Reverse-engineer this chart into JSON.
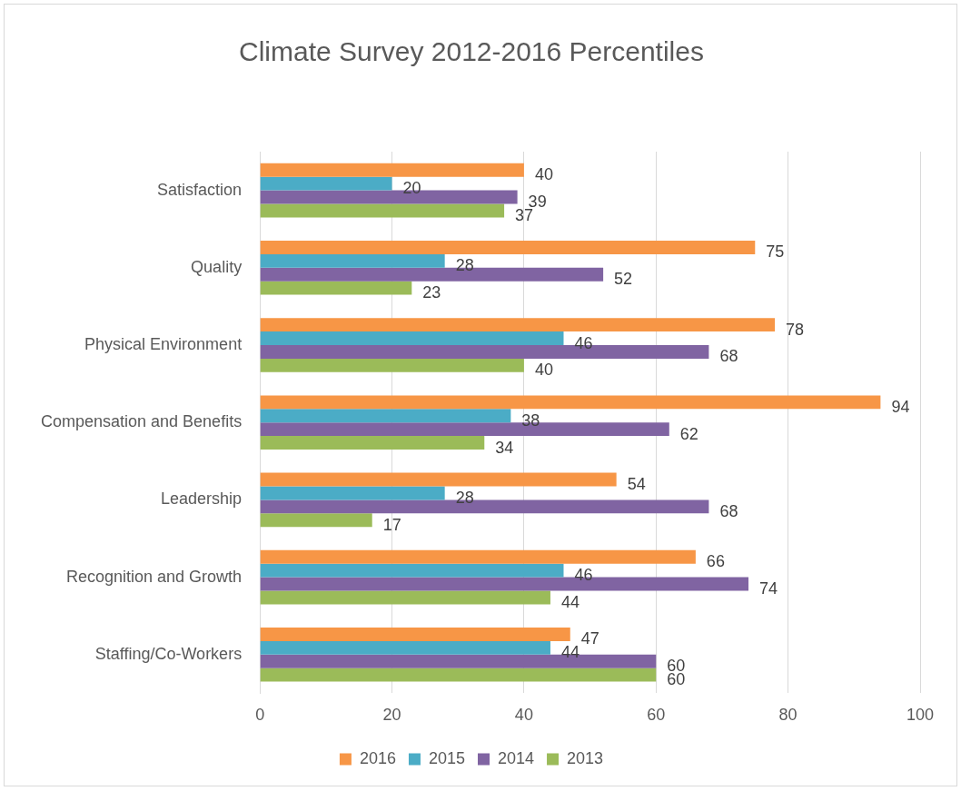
{
  "chart_data": {
    "type": "bar",
    "orientation": "horizontal",
    "title": "Climate Survey 2012-2016 Percentiles",
    "categories": [
      "Satisfaction",
      "Quality",
      "Physical Environment",
      "Compensation and Benefits",
      "Leadership",
      "Recognition and Growth",
      "Staffing/Co-Workers"
    ],
    "series": [
      {
        "name": "2016",
        "color": "#f79646",
        "values": [
          40,
          75,
          78,
          94,
          54,
          66,
          47
        ]
      },
      {
        "name": "2015",
        "color": "#4bacc6",
        "values": [
          20,
          28,
          46,
          38,
          28,
          46,
          44
        ]
      },
      {
        "name": "2014",
        "color": "#8064a2",
        "values": [
          39,
          52,
          68,
          62,
          68,
          74,
          60
        ]
      },
      {
        "name": "2013",
        "color": "#9bbb59",
        "values": [
          37,
          23,
          40,
          34,
          17,
          44,
          60
        ]
      }
    ],
    "xlim": [
      0,
      100
    ],
    "xticks": [
      0,
      20,
      40,
      60,
      80,
      100
    ],
    "grid": "x",
    "legend": "bottom",
    "data_labels": true
  }
}
